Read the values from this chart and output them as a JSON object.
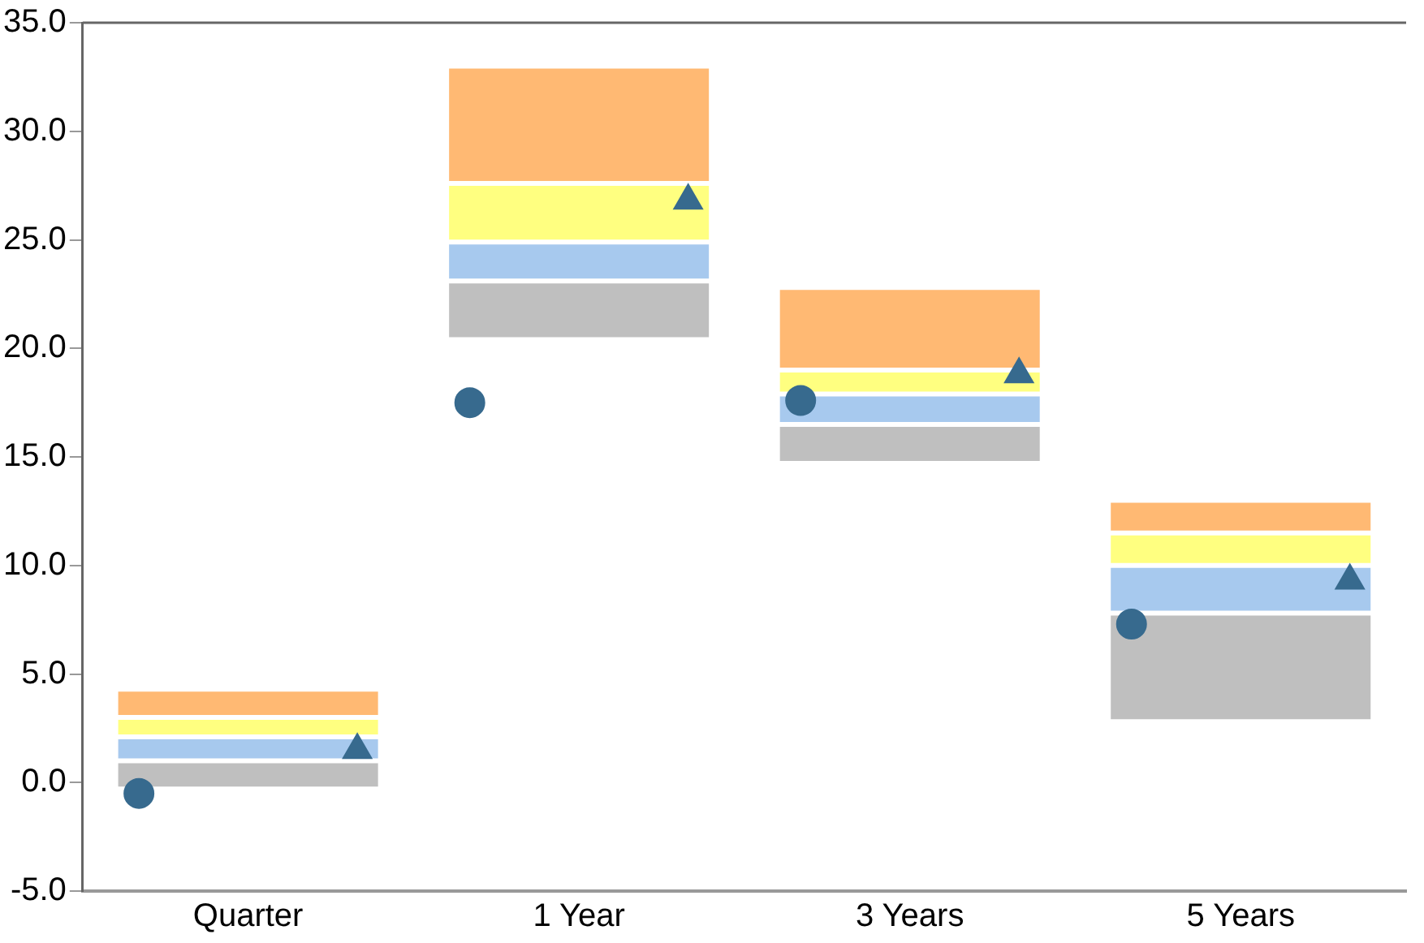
{
  "chart_data": {
    "type": "bar",
    "categories": [
      "Quarter",
      "1 Year",
      "3 Years",
      "5 Years"
    ],
    "series": [
      {
        "color": "#bfbfbf",
        "base": [
          -0.3,
          20.4,
          14.7,
          2.8
        ],
        "values": [
          1.3,
          2.7,
          1.8,
          5.0
        ]
      },
      {
        "color": "#a7c9ee",
        "base": [
          1.0,
          23.1,
          16.5,
          7.8
        ],
        "values": [
          1.1,
          1.8,
          1.4,
          2.2
        ]
      },
      {
        "color": "#ffff80",
        "base": [
          2.1,
          24.9,
          17.9,
          10.0
        ],
        "values": [
          0.9,
          2.7,
          1.1,
          1.5
        ]
      },
      {
        "color": "#ffb973",
        "base": [
          3.0,
          27.6,
          19.0,
          11.5
        ],
        "values": [
          1.3,
          5.4,
          3.8,
          1.5
        ]
      },
      {
        "type": "scatter",
        "marker": "circle",
        "color": "#376a8e",
        "x": [
          "Quarter",
          "1 Year",
          "3 Years",
          "5 Years"
        ],
        "values": [
          -0.5,
          17.5,
          17.6,
          7.3
        ]
      },
      {
        "type": "scatter",
        "marker": "triangle",
        "color": "#376a8e",
        "x": [
          "Quarter",
          "1 Year",
          "3 Years",
          "5 Years"
        ],
        "values": [
          1.5,
          26.8,
          18.8,
          9.3
        ]
      }
    ],
    "ylim": [
      -5,
      35
    ],
    "yticks": [
      {
        "value": -5,
        "label": "-5.0"
      },
      {
        "value": 0,
        "label": "0.0"
      },
      {
        "value": 5,
        "label": "5.0"
      },
      {
        "value": 10,
        "label": "10.0"
      },
      {
        "value": 15,
        "label": "15.0"
      },
      {
        "value": 20,
        "label": "20.0"
      },
      {
        "value": 25,
        "label": "25.0"
      },
      {
        "value": 30,
        "label": "30.0"
      },
      {
        "value": 35,
        "label": "35.0"
      }
    ],
    "grid": false,
    "legend": false
  }
}
